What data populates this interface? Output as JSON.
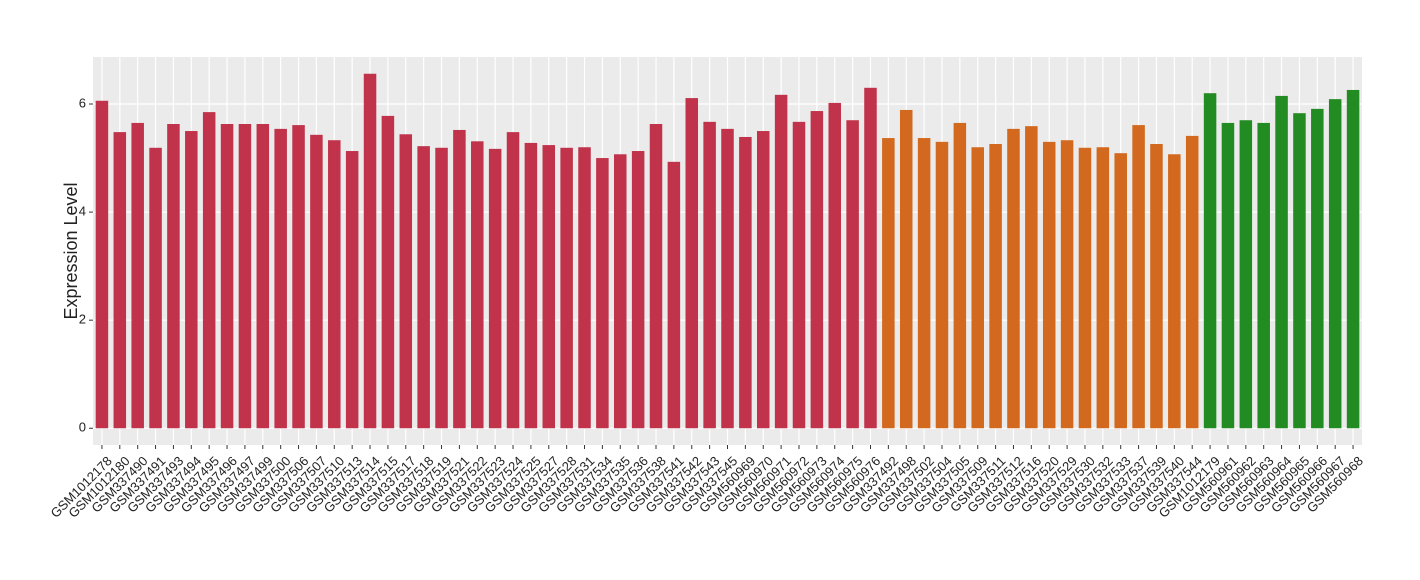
{
  "chart_data": {
    "type": "bar",
    "y_label": "Expression Level",
    "categories": [
      "GSM1012178",
      "GSM1012180",
      "GSM337490",
      "GSM337491",
      "GSM337493",
      "GSM337494",
      "GSM337495",
      "GSM337496",
      "GSM337497",
      "GSM337499",
      "GSM337500",
      "GSM337506",
      "GSM337507",
      "GSM337510",
      "GSM337513",
      "GSM337514",
      "GSM337515",
      "GSM337517",
      "GSM337518",
      "GSM337519",
      "GSM337521",
      "GSM337522",
      "GSM337523",
      "GSM337524",
      "GSM337525",
      "GSM337527",
      "GSM337528",
      "GSM337531",
      "GSM337534",
      "GSM337535",
      "GSM337536",
      "GSM337538",
      "GSM337541",
      "GSM337542",
      "GSM337543",
      "GSM337545",
      "GSM560969",
      "GSM560970",
      "GSM560971",
      "GSM560972",
      "GSM560973",
      "GSM560974",
      "GSM560975",
      "GSM560976",
      "GSM337492",
      "GSM337498",
      "GSM337502",
      "GSM337504",
      "GSM337505",
      "GSM337509",
      "GSM337511",
      "GSM337512",
      "GSM337516",
      "GSM337520",
      "GSM337529",
      "GSM337530",
      "GSM337532",
      "GSM337533",
      "GSM337537",
      "GSM337539",
      "GSM337540",
      "GSM337544",
      "GSM1012179",
      "GSM560961",
      "GSM560962",
      "GSM560963",
      "GSM560964",
      "GSM560965",
      "GSM560966",
      "GSM560967",
      "GSM560968"
    ],
    "values": [
      6.06,
      5.48,
      5.65,
      5.19,
      5.63,
      5.5,
      5.85,
      5.63,
      5.63,
      5.63,
      5.54,
      5.61,
      5.43,
      5.33,
      5.13,
      6.56,
      5.78,
      5.44,
      5.22,
      5.19,
      5.52,
      5.31,
      5.17,
      5.48,
      5.28,
      5.24,
      5.19,
      5.2,
      5.0,
      5.07,
      5.13,
      5.63,
      4.93,
      6.11,
      5.67,
      5.54,
      5.39,
      5.5,
      6.17,
      5.67,
      5.87,
      6.02,
      5.7,
      6.3,
      5.37,
      5.89,
      5.37,
      5.3,
      5.65,
      5.2,
      5.26,
      5.54,
      5.59,
      5.3,
      5.33,
      5.19,
      5.2,
      5.09,
      5.61,
      5.26,
      5.07,
      5.41,
      6.2,
      5.65,
      5.7,
      5.65,
      6.15,
      5.83,
      5.91,
      6.09,
      6.26
    ],
    "colors": [
      "#c0334a",
      "#c0334a",
      "#c0334a",
      "#c0334a",
      "#c0334a",
      "#c0334a",
      "#c0334a",
      "#c0334a",
      "#c0334a",
      "#c0334a",
      "#c0334a",
      "#c0334a",
      "#c0334a",
      "#c0334a",
      "#c0334a",
      "#c0334a",
      "#c0334a",
      "#c0334a",
      "#c0334a",
      "#c0334a",
      "#c0334a",
      "#c0334a",
      "#c0334a",
      "#c0334a",
      "#c0334a",
      "#c0334a",
      "#c0334a",
      "#c0334a",
      "#c0334a",
      "#c0334a",
      "#c0334a",
      "#c0334a",
      "#c0334a",
      "#c0334a",
      "#c0334a",
      "#c0334a",
      "#c0334a",
      "#c0334a",
      "#c0334a",
      "#c0334a",
      "#c0334a",
      "#c0334a",
      "#c0334a",
      "#c0334a",
      "#d2691e",
      "#d2691e",
      "#d2691e",
      "#d2691e",
      "#d2691e",
      "#d2691e",
      "#d2691e",
      "#d2691e",
      "#d2691e",
      "#d2691e",
      "#d2691e",
      "#d2691e",
      "#d2691e",
      "#d2691e",
      "#d2691e",
      "#d2691e",
      "#d2691e",
      "#d2691e",
      "#228b22",
      "#228b22",
      "#228b22",
      "#228b22",
      "#228b22",
      "#228b22",
      "#228b22",
      "#228b22",
      "#228b22"
    ],
    "ylim": [
      -0.31,
      6.87
    ],
    "yticks": [
      0,
      2,
      4,
      6
    ],
    "grid": true
  }
}
